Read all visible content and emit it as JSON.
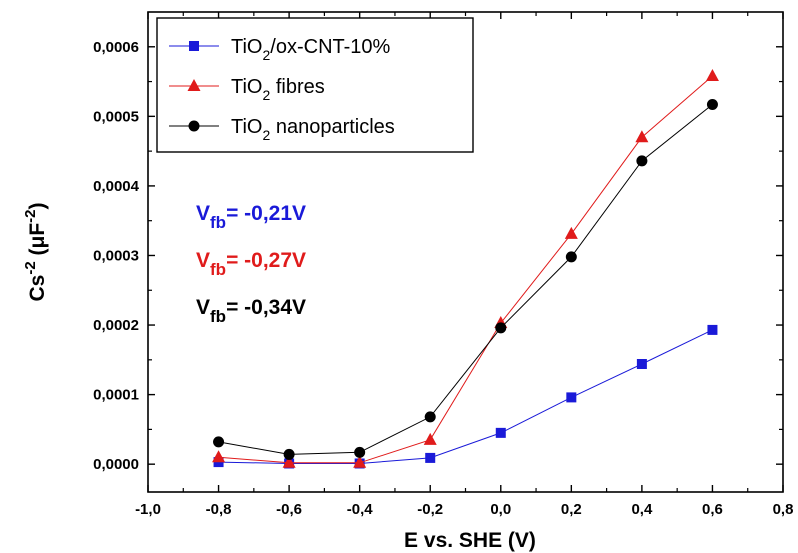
{
  "chart_data": {
    "type": "scatter",
    "xlabel": "E vs. SHE (V)",
    "ylabel": {
      "base": "Cs",
      "sup1": "-2",
      "unit_open": " (μF",
      "sup2": "-2",
      "unit_close": ")"
    },
    "xlim": [
      -1.0,
      0.8
    ],
    "ylim": [
      -4e-05,
      0.00065
    ],
    "x_ticks": [
      "-1,0",
      "-0,8",
      "-0,6",
      "-0,4",
      "-0,2",
      "0,0",
      "0,2",
      "0,4",
      "0,6",
      "0,8"
    ],
    "x_tick_values": [
      -1.0,
      -0.8,
      -0.6,
      -0.4,
      -0.2,
      0.0,
      0.2,
      0.4,
      0.6,
      0.8
    ],
    "y_ticks": [
      "0,0000",
      "0,0001",
      "0,0002",
      "0,0003",
      "0,0004",
      "0,0005",
      "0,0006"
    ],
    "y_tick_values": [
      0.0,
      0.0001,
      0.0002,
      0.0003,
      0.0004,
      0.0005,
      0.0006
    ],
    "x": [
      -0.8,
      -0.6,
      -0.4,
      -0.2,
      0.0,
      0.2,
      0.4,
      0.6
    ],
    "series": [
      {
        "name": "TiO2/ox-CNT-10%",
        "name_parts": {
          "pre": "TiO",
          "sub": "2",
          "post": "/ox-CNT-10%"
        },
        "color": "#1a1ad8",
        "marker": "square",
        "values": [
          3e-06,
          1e-06,
          1e-06,
          9e-06,
          4.5e-05,
          9.6e-05,
          0.000144,
          0.000193
        ]
      },
      {
        "name": "TiO2 fibres",
        "name_parts": {
          "pre": "TiO",
          "sub": "2",
          "post": " fibres"
        },
        "color": "#e01b1b",
        "marker": "triangle",
        "values": [
          1e-05,
          2e-06,
          2e-06,
          3.5e-05,
          0.000203,
          0.000331,
          0.00047,
          0.000558
        ]
      },
      {
        "name": "TiO2 nanoparticles",
        "name_parts": {
          "pre": "TiO",
          "sub": "2",
          "post": " nanoparticles"
        },
        "color": "#000000",
        "marker": "circle",
        "values": [
          3.2e-05,
          1.4e-05,
          1.7e-05,
          6.8e-05,
          0.000196,
          0.000298,
          0.000436,
          0.000517
        ]
      }
    ],
    "legend_position": "top-left",
    "annotations": [
      {
        "base": "V",
        "sub": "fb",
        "text": "= -0,21V",
        "color": "#1a1ad8"
      },
      {
        "base": "V",
        "sub": "fb",
        "text": "= -0,27V",
        "color": "#e01b1b"
      },
      {
        "base": "V",
        "sub": "fb",
        "text": "= -0,34V",
        "color": "#000000"
      }
    ],
    "grid": false
  }
}
